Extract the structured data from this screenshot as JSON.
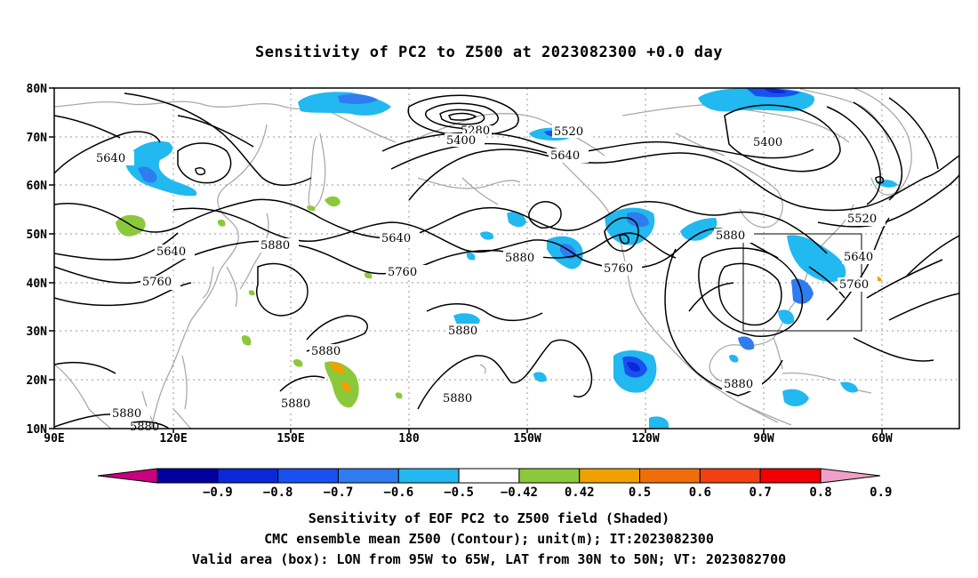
{
  "title": "Sensitivity of PC2 to Z500 at 2023082300 +0.0 day",
  "lat_labels": [
    "80N",
    "70N",
    "60N",
    "50N",
    "40N",
    "30N",
    "20N",
    "10N"
  ],
  "lon_labels": [
    "90E",
    "120E",
    "150E",
    "180",
    "150W",
    "120W",
    "90W",
    "60W"
  ],
  "contour_labels": [
    "5640",
    "5640",
    "5760",
    "5880",
    "5640",
    "5760",
    "5880",
    "5760",
    "5880",
    "5880",
    "5880",
    "5880",
    "5880",
    "5880",
    "5280",
    "5400",
    "5520",
    "5640",
    "5400",
    "5520",
    "5880",
    "5640",
    "5760",
    "5880"
  ],
  "colorbar": {
    "labels": [
      "-0.9",
      "-0.8",
      "-0.7",
      "-0.6",
      "-0.5",
      "-0.42",
      "0.42",
      "0.5",
      "0.6",
      "0.7",
      "0.8",
      "0.9"
    ],
    "colors": [
      "#c8007f",
      "#0000a0",
      "#0a28d8",
      "#1950f0",
      "#2f7cf0",
      "#22b8f0",
      "#ffffff",
      "#8cc83c",
      "#f0a000",
      "#f06e0a",
      "#f04014",
      "#f00000",
      "#f0a0c8"
    ]
  },
  "footer": {
    "line1": "Sensitivity of EOF PC2 to Z500 field (Shaded)",
    "line2": "CMC ensemble mean Z500 (Contour); unit(m); IT:2023082300",
    "line3": "Valid area (box): LON from 95W to 65W, LAT from 30N to 50N; VT: 2023082700"
  }
}
